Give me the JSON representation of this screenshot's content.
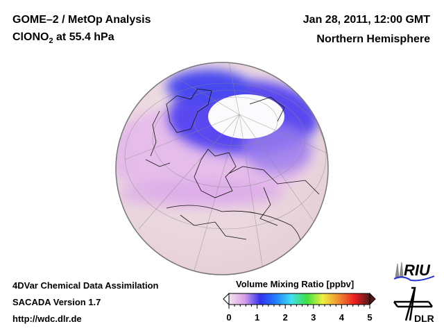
{
  "header": {
    "title_line1": "GOME–2 / MetOp Analysis",
    "species_main": "ClONO",
    "species_sub": "2",
    "species_rest": " at 55.4 hPa",
    "datetime": "Jan 28, 2011, 12:00 GMT",
    "region": "Northern Hemisphere"
  },
  "footer": {
    "line1": "4DVar Chemical Data Assimilation",
    "line2": "SACADA Version 1.7",
    "line3": "http://wdc.dlr.de"
  },
  "colorbar": {
    "title": "Volume Mixing Ratio [ppbv]",
    "ticks": [
      "0",
      "1",
      "2",
      "3",
      "4",
      "5"
    ],
    "range": [
      0,
      5
    ],
    "colors": [
      "#f3e4ec",
      "#d8a0e8",
      "#3030f0",
      "#2080ff",
      "#40e0f0",
      "#40e040",
      "#f0f040",
      "#f09030",
      "#f02020",
      "#501818"
    ]
  },
  "logos": {
    "riu": "RIU",
    "dlr": "DLR"
  }
}
